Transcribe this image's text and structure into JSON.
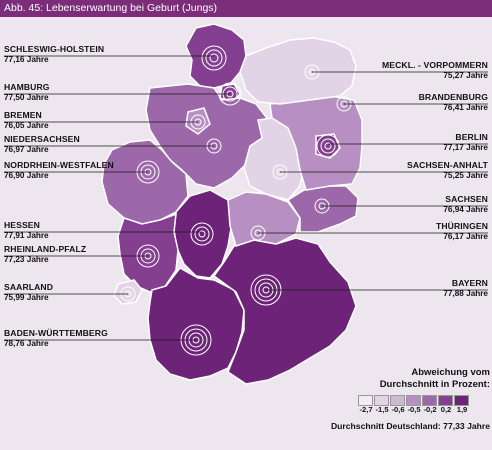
{
  "header": {
    "title": "Abb. 45:  Lebenserwartung bei Geburt (Jungs)"
  },
  "colors": {
    "header": "#7b2d7a",
    "background": "#ede6ef",
    "scale": [
      "#f3ecf4",
      "#e3d3e7",
      "#cfb7d6",
      "#b78fc2",
      "#9d68aa",
      "#853f91",
      "#6d2378"
    ]
  },
  "states": [
    {
      "id": "sh",
      "name": "SCHLESWIG-HOLSTEIN",
      "value": "77,16 Jahre",
      "class_index": 5
    },
    {
      "id": "hh",
      "name": "HAMBURG",
      "value": "77,50 Jahre",
      "class_index": 5
    },
    {
      "id": "hb",
      "name": "BREMEN",
      "value": "76,05 Jahre",
      "class_index": 3
    },
    {
      "id": "ni",
      "name": "NIEDERSACHSEN",
      "value": "76,97 Jahre",
      "class_index": 4
    },
    {
      "id": "nw",
      "name": "NORDRHEIN-WESTFALEN",
      "value": "76,90 Jahre",
      "class_index": 4
    },
    {
      "id": "he",
      "name": "HESSEN",
      "value": "77,91 Jahre",
      "class_index": 6
    },
    {
      "id": "rp",
      "name": "RHEINLAND-PFALZ",
      "value": "77,23 Jahre",
      "class_index": 5
    },
    {
      "id": "sl",
      "name": "SAARLAND",
      "value": "75,99 Jahre",
      "class_index": 1
    },
    {
      "id": "bw",
      "name": "BADEN-WÜRTTEMBERG",
      "value": "78,76 Jahre",
      "class_index": 6
    },
    {
      "id": "mv",
      "name": "MECKL. - VORPOMMERN",
      "value": "75,27 Jahre",
      "class_index": 1
    },
    {
      "id": "bb",
      "name": "BRANDENBURG",
      "value": "76,41 Jahre",
      "class_index": 3
    },
    {
      "id": "be",
      "name": "BERLIN",
      "value": "77,17 Jahre",
      "class_index": 5
    },
    {
      "id": "st",
      "name": "SACHSEN-ANHALT",
      "value": "75,25 Jahre",
      "class_index": 1
    },
    {
      "id": "sn",
      "name": "SACHSEN",
      "value": "76,94 Jahre",
      "class_index": 4
    },
    {
      "id": "th",
      "name": "THÜRINGEN",
      "value": "76,17 Jahre",
      "class_index": 3
    },
    {
      "id": "by",
      "name": "BAYERN",
      "value": "77,88 Jahre",
      "class_index": 6
    }
  ],
  "legend": {
    "title_line1": "Abweichung vom",
    "title_line2": "Durchschnitt in Prozent:",
    "ticks": [
      "-2,7",
      "-1,5",
      "-0,6",
      "-0,5",
      "-0,2",
      "0,2",
      "1,9"
    ],
    "average": "Durchschnitt Deutschland: 77,33 Jahre"
  }
}
